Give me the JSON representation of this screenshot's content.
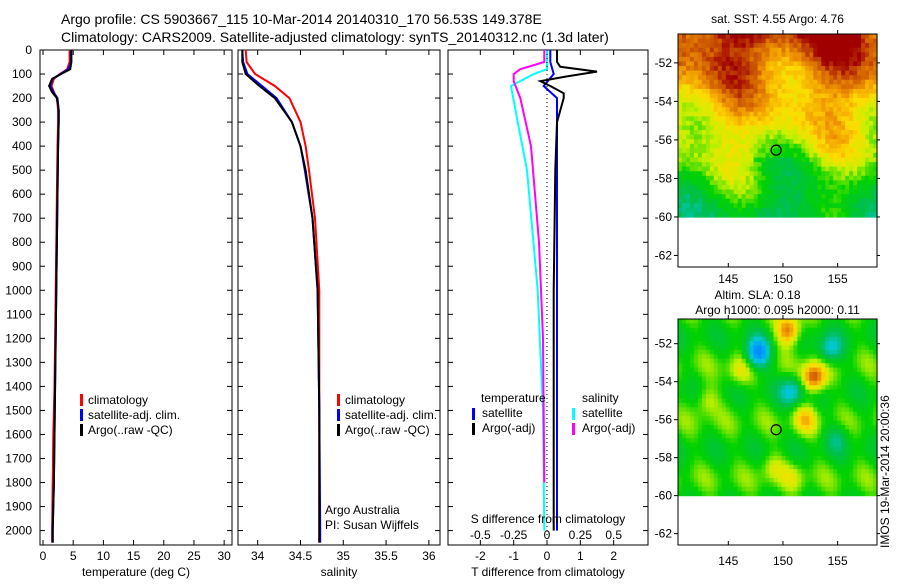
{
  "title": {
    "line1": "Argo profile: CS 5903667_115 10-Mar-2014 20140310_170 56.53S 149.378E",
    "line2": "Climatology: CARS2009. Satellite-adjusted climatology: synTS_20140312.nc (1.3d later)"
  },
  "side_stamp": "IMOS 19-Mar-2014 20:00:36",
  "credit": {
    "line1": "Argo Australia",
    "line2": "PI: Susan Wijffels"
  },
  "colors": {
    "climatology": "#ff0000",
    "satellite": "#0000ff",
    "argo": "#000000",
    "sat_salinity": "#00ffff",
    "argo_salinity": "#ff00ff"
  },
  "chart_data": [
    {
      "type": "line",
      "id": "temperature",
      "xlabel": "temperature (deg C)",
      "xlim": [
        -0.5,
        31.3
      ],
      "ylim": [
        0,
        2060
      ],
      "y_inverted": true,
      "xticks": [
        "0",
        "5",
        "10",
        "15",
        "20",
        "25",
        "30"
      ],
      "xtick_values": [
        0,
        5,
        10,
        15,
        20,
        25,
        30
      ],
      "yticks": [
        "0",
        "100",
        "200",
        "300",
        "400",
        "500",
        "600",
        "700",
        "800",
        "900",
        "1000",
        "1100",
        "1200",
        "1300",
        "1400",
        "1500",
        "1600",
        "1700",
        "1800",
        "1900",
        "2000"
      ],
      "ytick_values": [
        0,
        100,
        200,
        300,
        400,
        500,
        600,
        700,
        800,
        900,
        1000,
        1100,
        1200,
        1300,
        1400,
        1500,
        1600,
        1700,
        1800,
        1900,
        2000
      ],
      "legend": [
        "climatology",
        "satellite-adj. clim.",
        "Argo(..raw -QC)"
      ],
      "depth": [
        0,
        50,
        80,
        100,
        120,
        150,
        175,
        200,
        250,
        300,
        400,
        600,
        800,
        1000,
        1200,
        1400,
        1600,
        1800,
        2000,
        2050
      ],
      "series": [
        {
          "name": "climatology",
          "color": "#ff0000",
          "values": [
            4.4,
            4.4,
            4.0,
            2.8,
            1.8,
            1.4,
            1.8,
            2.3,
            2.5,
            2.5,
            2.4,
            2.3,
            2.2,
            2.1,
            2.0,
            1.9,
            1.7,
            1.6,
            1.5,
            1.5
          ]
        },
        {
          "name": "satellite-adj. clim.",
          "color": "#0000ff",
          "values": [
            4.6,
            4.6,
            4.2,
            2.9,
            1.6,
            1.2,
            1.7,
            2.4,
            2.6,
            2.6,
            2.5,
            2.4,
            2.3,
            2.2,
            2.1,
            2.0,
            1.9,
            1.8,
            1.6,
            1.6
          ]
        },
        {
          "name": "Argo(..raw -QC)",
          "color": "#000000",
          "values": [
            4.7,
            4.7,
            4.5,
            3.0,
            1.5,
            1.0,
            1.5,
            2.3,
            2.6,
            2.6,
            2.5,
            2.4,
            2.3,
            2.2,
            2.1,
            2.0,
            1.9,
            1.8,
            1.6,
            1.6
          ]
        }
      ]
    },
    {
      "type": "line",
      "id": "salinity",
      "xlabel": "salinity",
      "xlim": [
        33.77,
        36.13
      ],
      "ylim": [
        0,
        2060
      ],
      "y_inverted": true,
      "xticks": [
        "34",
        "34.5",
        "35",
        "35.5",
        "36"
      ],
      "xtick_values": [
        34,
        34.5,
        35,
        35.5,
        36
      ],
      "legend": [
        "climatology",
        "satellite-adj. clim.",
        "Argo(..raw -QC)"
      ],
      "depth": [
        0,
        50,
        100,
        150,
        200,
        300,
        400,
        500,
        700,
        1000,
        1500,
        2000,
        2050
      ],
      "series": [
        {
          "name": "climatology",
          "color": "#ff0000",
          "values": [
            33.86,
            33.87,
            33.97,
            34.2,
            34.37,
            34.5,
            34.56,
            34.6,
            34.67,
            34.72,
            34.72,
            34.72,
            34.72
          ]
        },
        {
          "name": "satellite-adj. clim.",
          "color": "#0000ff",
          "values": [
            33.82,
            33.83,
            33.88,
            34.05,
            34.22,
            34.4,
            34.5,
            34.55,
            34.64,
            34.7,
            34.72,
            34.73,
            34.73
          ]
        },
        {
          "name": "Argo(..raw -QC)",
          "color": "#000000",
          "values": [
            33.82,
            33.82,
            33.86,
            34.02,
            34.2,
            34.4,
            34.5,
            34.56,
            34.64,
            34.7,
            34.72,
            34.72,
            34.72
          ]
        }
      ]
    },
    {
      "type": "line",
      "id": "differences",
      "xlabel": "T difference from climatology",
      "x2label": "S difference from climatology",
      "xlim": [
        -2.97,
        3.03
      ],
      "ylim": [
        0,
        2060
      ],
      "y_inverted": true,
      "xticks": [
        "-2",
        "-1",
        "0",
        "1",
        "2"
      ],
      "xtick_values": [
        -2,
        -1,
        0,
        1,
        2
      ],
      "x2ticks": [
        "-0.5",
        "-0.25",
        "0",
        "0.25",
        "0.5"
      ],
      "x2tick_values": [
        -0.5,
        -0.25,
        0,
        0.25,
        0.5
      ],
      "legend": {
        "temperature_header": "temperature",
        "salinity_header": "salinity",
        "t_sat": "satellite",
        "t_argo": "Argo(-adj)",
        "s_sat": "satellite",
        "s_argo": "Argo(-adj)"
      },
      "series": [
        {
          "name": "temperature satellite",
          "color": "#0000ff",
          "units": "T",
          "depth": [
            0,
            50,
            100,
            150,
            200,
            300,
            500,
            1000,
            1500,
            2000
          ],
          "values": [
            0.1,
            0.1,
            0.2,
            -0.1,
            0.3,
            0.3,
            0.3,
            0.3,
            0.3,
            0.3
          ]
        },
        {
          "name": "temperature Argo(-adj)",
          "color": "#000000",
          "units": "T",
          "depth": [
            0,
            50,
            70,
            90,
            110,
            130,
            150,
            180,
            200,
            300,
            500,
            1000,
            1500,
            2000
          ],
          "values": [
            0.3,
            0.3,
            0.4,
            1.5,
            0.6,
            -0.2,
            0.1,
            0.5,
            0.5,
            0.3,
            0.25,
            0.2,
            0.2,
            0.2
          ]
        },
        {
          "name": "salinity satellite",
          "color": "#00ffff",
          "units": "S",
          "depth": [
            0,
            50,
            80,
            100,
            150,
            300,
            500,
            1000,
            1500,
            2000
          ],
          "values": [
            0.0,
            0.0,
            0.0,
            -0.1,
            -0.27,
            -0.22,
            -0.15,
            -0.07,
            -0.03,
            -0.02
          ]
        },
        {
          "name": "salinity Argo(-adj)",
          "color": "#ff00ff",
          "units": "S",
          "depth": [
            0,
            50,
            80,
            100,
            130,
            200,
            400,
            800,
            1200,
            1800
          ],
          "values": [
            -0.02,
            -0.02,
            -0.2,
            -0.25,
            -0.25,
            -0.2,
            -0.12,
            -0.06,
            -0.03,
            -0.02
          ]
        }
      ]
    },
    {
      "type": "heatmap",
      "id": "sst_map",
      "title": "sat. SST: 4.55 Argo: 4.76",
      "xlim": [
        140.4,
        158.6
      ],
      "ylim": [
        -62.6,
        -50.5
      ],
      "xticks": [
        "145",
        "150",
        "155"
      ],
      "xtick_values": [
        145,
        150,
        155
      ],
      "yticks": [
        "-52",
        "-54",
        "-56",
        "-58",
        "-60",
        "-62"
      ],
      "ytick_values": [
        -52,
        -54,
        -56,
        -58,
        -60,
        -62
      ],
      "data_south_limit": -60,
      "marker": {
        "lon": 149.378,
        "lat": -56.53
      }
    },
    {
      "type": "heatmap",
      "id": "sla_map",
      "title": "Altim. SLA: 0.18",
      "subtitle": "Argo h1000: 0.095 h2000: 0.11",
      "xlim": [
        140.4,
        158.6
      ],
      "ylim": [
        -62.6,
        -50.7
      ],
      "xticks": [
        "145",
        "150",
        "155"
      ],
      "xtick_values": [
        145,
        150,
        155
      ],
      "yticks": [
        "-52",
        "-54",
        "-56",
        "-58",
        "-60",
        "-62"
      ],
      "ytick_values": [
        -52,
        -54,
        -56,
        -58,
        -60,
        -62
      ],
      "data_south_limit": -60,
      "marker": {
        "lon": 149.378,
        "lat": -56.53
      }
    }
  ]
}
